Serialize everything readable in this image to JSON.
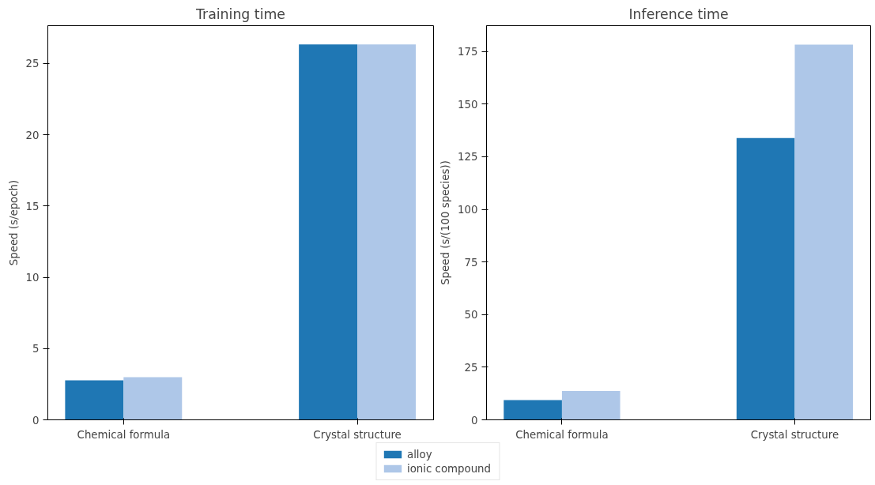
{
  "chart_data": [
    {
      "type": "bar",
      "title": "Training time",
      "ylabel": "Speed (s/epoch)",
      "categories": [
        "Chemical formula",
        "Crystal structure"
      ],
      "series": [
        {
          "name": "alloy",
          "color": "#1f77b4",
          "values": [
            2.77,
            26.34
          ]
        },
        {
          "name": "ionic compound",
          "color": "#aec7e8",
          "values": [
            2.99,
            26.34
          ]
        }
      ],
      "ylim": [
        0,
        27.66
      ],
      "yticks": [
        0,
        5,
        10,
        15,
        20,
        25
      ],
      "grid": false,
      "legend": "bottom"
    },
    {
      "type": "bar",
      "title": "Inference time",
      "ylabel": "Speed (s/(100 species))",
      "categories": [
        "Chemical formula",
        "Crystal structure"
      ],
      "series": [
        {
          "color": "#1f77b4",
          "values": [
            9.4,
            133.9
          ]
        },
        {
          "color": "#aec7e8",
          "values": [
            13.7,
            178.3
          ]
        }
      ],
      "ylim": [
        0,
        187.3
      ],
      "yticks": [
        0,
        25,
        50,
        75,
        100,
        125,
        150,
        175
      ],
      "grid": false
    }
  ]
}
